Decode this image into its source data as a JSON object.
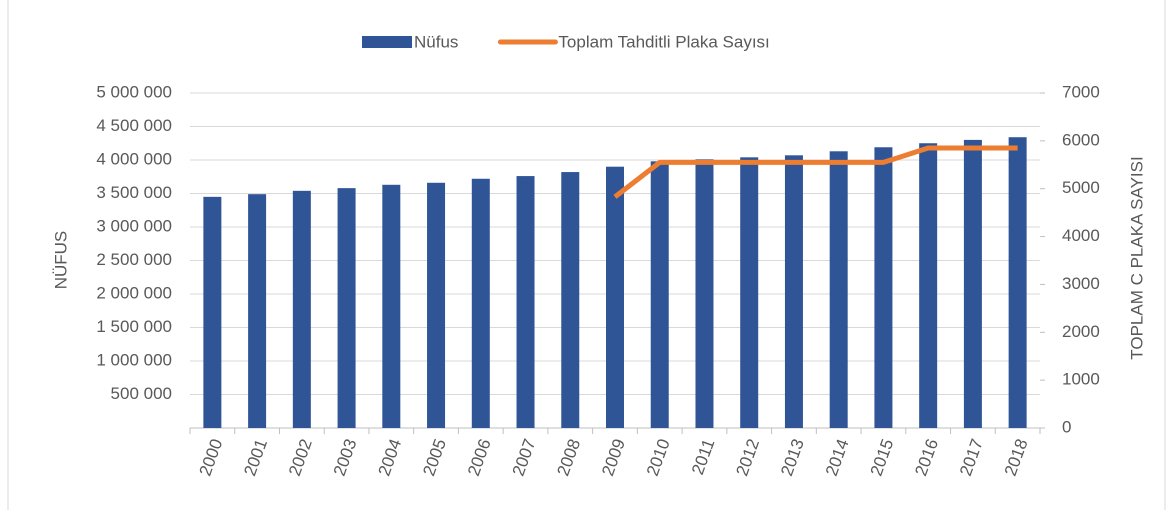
{
  "chart_data": {
    "type": "bar_line",
    "categories": [
      "2000",
      "2001",
      "2002",
      "2003",
      "2004",
      "2005",
      "2006",
      "2007",
      "2008",
      "2009",
      "2010",
      "2011",
      "2012",
      "2013",
      "2014",
      "2015",
      "2016",
      "2017",
      "2018"
    ],
    "series": [
      {
        "name": "Nüfus",
        "type": "bar",
        "color": "#2f5597",
        "values": [
          3450000,
          3490000,
          3540000,
          3580000,
          3630000,
          3660000,
          3720000,
          3760000,
          3820000,
          3900000,
          3980000,
          4010000,
          4040000,
          4070000,
          4130000,
          4190000,
          4250000,
          4300000,
          4340000
        ]
      },
      {
        "name": "Toplam Tahditli Plaka Sayısı",
        "type": "line",
        "axis": "y2",
        "color": "#ed7d31",
        "values": [
          null,
          null,
          null,
          null,
          null,
          null,
          null,
          null,
          null,
          4830,
          5550,
          5550,
          5550,
          5550,
          5550,
          5550,
          5850,
          5850,
          5850
        ]
      }
    ],
    "ylabel": "NÜFUS",
    "y2label": "TOPLAM C PLAKA SAYISI",
    "ylim": [
      0,
      5000000
    ],
    "yticks": [
      {
        "value": 500000,
        "label": "500 000"
      },
      {
        "value": 1000000,
        "label": "1 000 000"
      },
      {
        "value": 1500000,
        "label": "1 500 000"
      },
      {
        "value": 2000000,
        "label": "2 000 000"
      },
      {
        "value": 2500000,
        "label": "2 500 000"
      },
      {
        "value": 3000000,
        "label": "3 000 000"
      },
      {
        "value": 3500000,
        "label": "3 500 000"
      },
      {
        "value": 4000000,
        "label": "4 000 000"
      },
      {
        "value": 4500000,
        "label": "4 500 000"
      },
      {
        "value": 5000000,
        "label": "5 000 000"
      }
    ],
    "y2lim": [
      0,
      7000
    ],
    "y2ticks": [
      0,
      1000,
      2000,
      3000,
      4000,
      5000,
      6000,
      7000
    ],
    "grid": true,
    "legend": "top"
  }
}
